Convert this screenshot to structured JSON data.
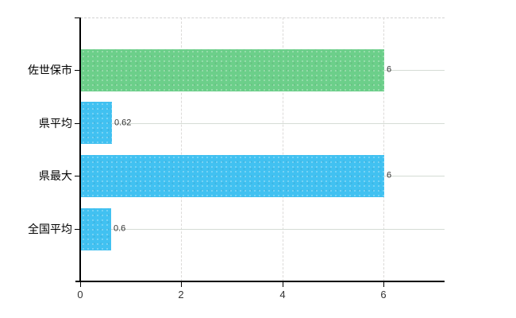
{
  "chart_data": {
    "type": "bar",
    "orientation": "horizontal",
    "title": "",
    "xlabel": "",
    "ylabel": "",
    "categories": [
      "佐世保市",
      "県平均",
      "県最大",
      "全国平均"
    ],
    "values": [
      6,
      0.62,
      6,
      0.6
    ],
    "value_labels": [
      "6",
      "0.62",
      "6",
      "0.6"
    ],
    "x_ticks": [
      0,
      2,
      4,
      6
    ],
    "x_tick_labels": [
      "0",
      "2",
      "4",
      "6"
    ],
    "xlim": [
      0,
      7.2
    ],
    "grid": true,
    "legend": false,
    "colors": {
      "bar_default": "#41c1f1",
      "bar_highlight": "#6ccf8a",
      "bar_color_per_category": [
        "#6ccf8a",
        "#41c1f1",
        "#41c1f1",
        "#41c1f1"
      ],
      "category_gridline": "#d5dcd5",
      "value_gridline_dashed": "#dcdad8",
      "plot_border_dashed": "#d2d2d2",
      "axis": "#000000",
      "text": "#000000",
      "background": "#ffffff"
    }
  }
}
